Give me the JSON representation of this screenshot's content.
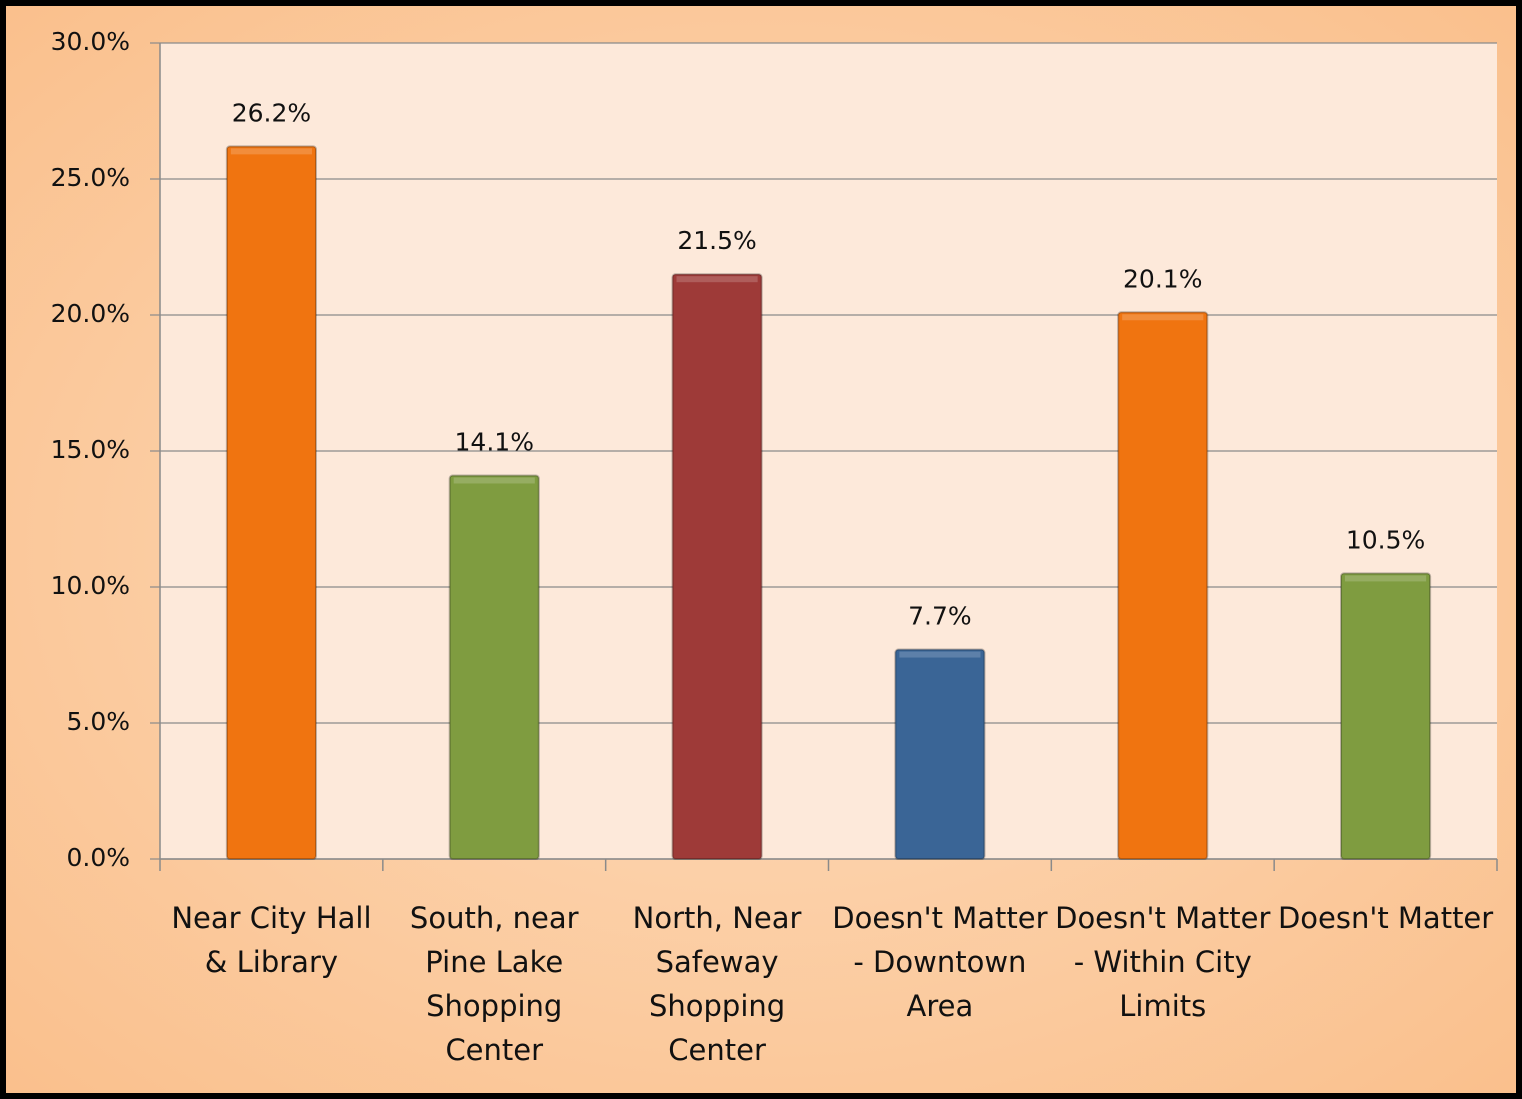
{
  "chart_data": {
    "type": "bar",
    "categories": [
      "Near City Hall & Library",
      "South, near Pine Lake Shopping Center",
      "North, Near Safeway Shopping Center",
      "Doesn't Matter - Downtown Area",
      "Doesn't Matter - Within City Limits",
      "Doesn't Matter"
    ],
    "values": [
      26.2,
      14.1,
      21.5,
      7.7,
      20.1,
      10.5
    ],
    "value_labels": [
      "26.2%",
      "14.1%",
      "21.5%",
      "7.7%",
      "20.1%",
      "10.5%"
    ],
    "colors": [
      "#f07410",
      "#7f9c40",
      "#9e3a38",
      "#3a6596",
      "#f07410",
      "#7f9c40"
    ],
    "ylim": [
      0,
      30
    ],
    "yticks": [
      {
        "value": 0,
        "label": "0.0%"
      },
      {
        "value": 5,
        "label": "5.0%"
      },
      {
        "value": 10,
        "label": "10.0%"
      },
      {
        "value": 15,
        "label": "15.0%"
      },
      {
        "value": 20,
        "label": "20.0%"
      },
      {
        "value": 25,
        "label": "25.0%"
      },
      {
        "value": 30,
        "label": "30.0%"
      }
    ],
    "grid": true
  }
}
